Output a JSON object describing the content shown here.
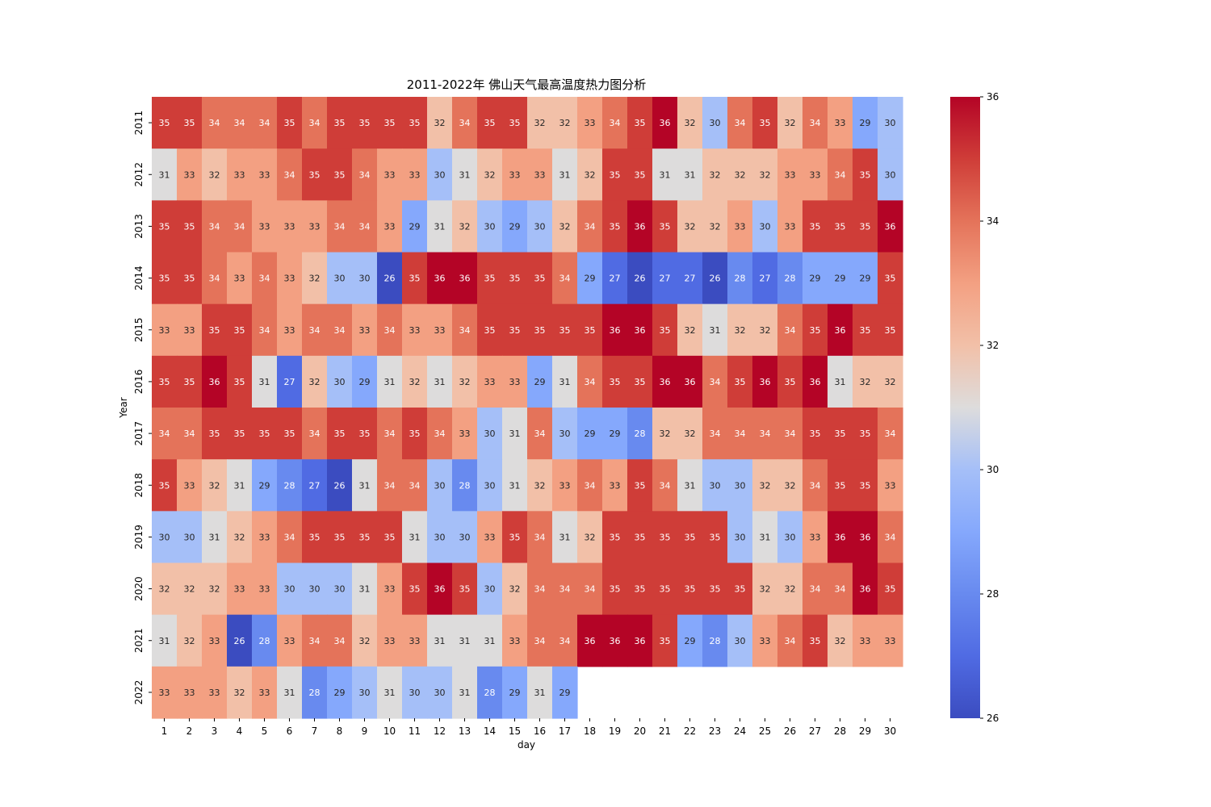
{
  "chart_data": {
    "type": "heatmap",
    "title": "2011-2022年 佛山天气最高温度热力图分析",
    "xlabel": "day",
    "ylabel": "Year",
    "x": [
      1,
      2,
      3,
      4,
      5,
      6,
      7,
      8,
      9,
      10,
      11,
      12,
      13,
      14,
      15,
      16,
      17,
      18,
      19,
      20,
      21,
      22,
      23,
      24,
      25,
      26,
      27,
      28,
      29,
      30
    ],
    "y": [
      "2011",
      "2012",
      "2013",
      "2014",
      "2015",
      "2016",
      "2017",
      "2018",
      "2019",
      "2020",
      "2021",
      "2022"
    ],
    "values": [
      [
        35,
        35,
        34,
        34,
        34,
        35,
        34,
        35,
        35,
        35,
        35,
        32,
        34,
        35,
        35,
        32,
        32,
        33,
        34,
        35,
        36,
        32,
        30,
        34,
        35,
        32,
        34,
        33,
        29,
        30
      ],
      [
        31,
        33,
        32,
        33,
        33,
        34,
        35,
        35,
        34,
        33,
        33,
        30,
        31,
        32,
        33,
        33,
        31,
        32,
        35,
        35,
        31,
        31,
        32,
        32,
        32,
        33,
        33,
        34,
        35,
        30
      ],
      [
        35,
        35,
        34,
        34,
        33,
        33,
        33,
        34,
        34,
        33,
        29,
        31,
        32,
        30,
        29,
        30,
        32,
        34,
        35,
        36,
        35,
        32,
        32,
        33,
        30,
        33,
        35,
        35,
        35,
        36
      ],
      [
        35,
        35,
        34,
        33,
        34,
        33,
        32,
        30,
        30,
        26,
        35,
        36,
        36,
        35,
        35,
        35,
        34,
        29,
        27,
        26,
        27,
        27,
        26,
        28,
        27,
        28,
        29,
        29,
        29,
        35
      ],
      [
        33,
        33,
        35,
        35,
        34,
        33,
        34,
        34,
        33,
        34,
        33,
        33,
        34,
        35,
        35,
        35,
        35,
        35,
        36,
        36,
        35,
        32,
        31,
        32,
        32,
        34,
        35,
        36,
        35,
        35
      ],
      [
        35,
        35,
        36,
        35,
        31,
        27,
        32,
        30,
        29,
        31,
        32,
        31,
        32,
        33,
        33,
        29,
        31,
        34,
        35,
        35,
        36,
        36,
        34,
        35,
        36,
        35,
        36,
        31,
        32,
        32
      ],
      [
        34,
        34,
        35,
        35,
        35,
        35,
        34,
        35,
        35,
        34,
        35,
        34,
        33,
        30,
        31,
        34,
        30,
        29,
        29,
        28,
        32,
        32,
        34,
        34,
        34,
        34,
        35,
        35,
        35,
        34
      ],
      [
        35,
        33,
        32,
        31,
        29,
        28,
        27,
        26,
        31,
        34,
        34,
        30,
        28,
        30,
        31,
        32,
        33,
        34,
        33,
        35,
        34,
        31,
        30,
        30,
        32,
        32,
        34,
        35,
        35,
        33
      ],
      [
        30,
        30,
        31,
        32,
        33,
        34,
        35,
        35,
        35,
        35,
        31,
        30,
        30,
        33,
        35,
        34,
        31,
        32,
        35,
        35,
        35,
        35,
        35,
        30,
        31,
        30,
        33,
        36,
        36,
        34
      ],
      [
        32,
        32,
        32,
        33,
        33,
        30,
        30,
        30,
        31,
        33,
        35,
        36,
        35,
        30,
        32,
        34,
        34,
        34,
        35,
        35,
        35,
        35,
        35,
        35,
        32,
        32,
        34,
        34,
        36,
        35
      ],
      [
        31,
        32,
        33,
        26,
        28,
        33,
        34,
        34,
        32,
        33,
        33,
        31,
        31,
        31,
        33,
        34,
        34,
        36,
        36,
        36,
        35,
        29,
        28,
        30,
        33,
        34,
        35,
        32,
        33,
        33
      ],
      [
        33,
        33,
        33,
        32,
        33,
        31,
        28,
        29,
        30,
        31,
        30,
        30,
        31,
        28,
        29,
        31,
        29,
        null,
        null,
        null,
        null,
        null,
        null,
        null,
        null,
        null,
        null,
        null,
        null,
        null
      ]
    ],
    "colorbar": {
      "range": [
        26,
        36
      ],
      "ticks": [
        26,
        28,
        30,
        32,
        34,
        36
      ],
      "colormap": "coolwarm",
      "low_color": "#3b4cc0",
      "mid_color": "#dddcdc",
      "high_color": "#b40426"
    },
    "annotations": "cell values shown"
  }
}
